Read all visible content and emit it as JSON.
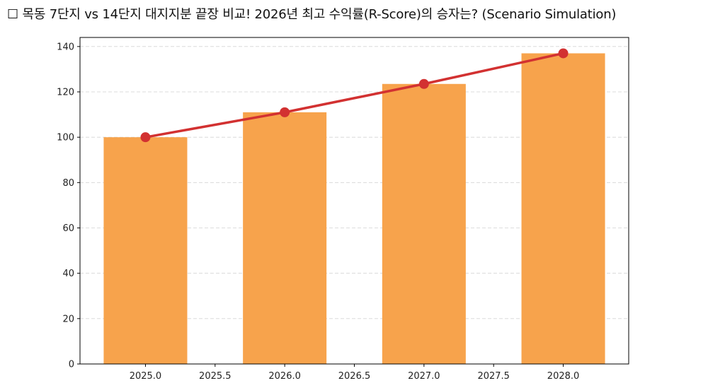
{
  "title": "☐ 목동 7단지 vs 14단지 대지지분 끝장 비교! 2026년 최고 수익률(R-Score)의 승자는? (Scenario Simulation)",
  "colors": {
    "bar": "#f7a34c",
    "line": "#d23131",
    "grid": "#d3d3d3",
    "axis": "#000000"
  },
  "chart_data": {
    "type": "bar",
    "title": "☐ 목동 7단지 vs 14단지 대지지분 끝장 비교! 2026년 최고 수익률(R-Score)의 승자는? (Scenario Simulation)",
    "xlabel": "",
    "ylabel": "",
    "categories": [
      2025,
      2026,
      2027,
      2028
    ],
    "series": [
      {
        "name": "bars",
        "type": "bar",
        "values": [
          100,
          111,
          123.5,
          137
        ]
      },
      {
        "name": "line",
        "type": "line",
        "values": [
          100,
          111,
          123.5,
          137
        ]
      }
    ],
    "xlim": [
      2024.53,
      2028.47
    ],
    "ylim": [
      0,
      144
    ],
    "xticks": [
      "2025.0",
      "2025.5",
      "2026.0",
      "2026.5",
      "2027.0",
      "2027.5",
      "2028.0"
    ],
    "yticks": [
      "0",
      "20",
      "40",
      "60",
      "80",
      "100",
      "120",
      "140"
    ],
    "grid": "y-dashed",
    "legend": null
  }
}
